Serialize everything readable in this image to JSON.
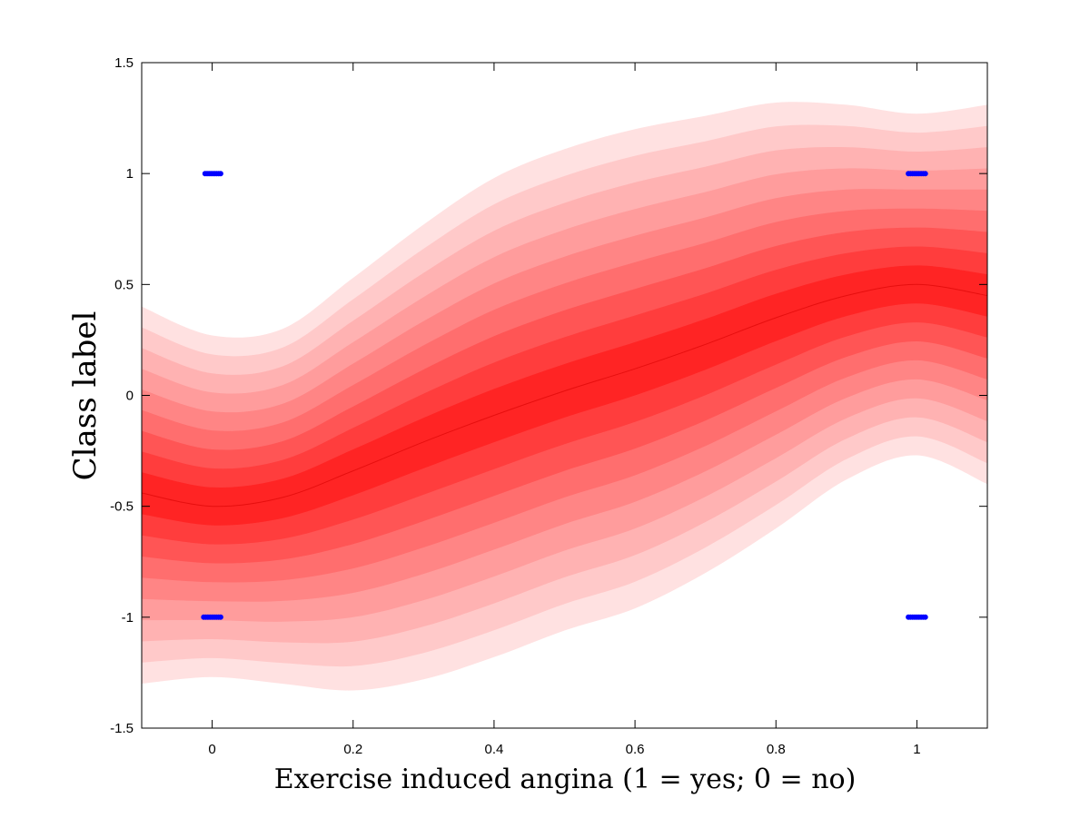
{
  "chart_data": {
    "type": "area",
    "title": "",
    "xlabel": "Exercise induced angina (1 = yes; 0 = no)",
    "ylabel": "Class label",
    "xlim": [
      -0.1,
      1.1
    ],
    "ylim": [
      -1.5,
      1.5
    ],
    "x_ticks": [
      0,
      0.2,
      0.4,
      0.6,
      0.8,
      1
    ],
    "x_tick_labels": [
      "0",
      "0.2",
      "0.4",
      "0.6",
      "0.8",
      "1"
    ],
    "y_ticks": [
      -1.5,
      -1,
      -0.5,
      0,
      0.5,
      1,
      1.5
    ],
    "y_tick_labels": [
      "-1.5",
      "-1",
      "-0.5",
      "0",
      "0.5",
      "1",
      "1.5"
    ],
    "grid": false,
    "legend": "none",
    "mean_curve": {
      "x": [
        -0.1,
        0.0,
        0.1,
        0.2,
        0.3,
        0.4,
        0.5,
        0.6,
        0.7,
        0.8,
        0.9,
        1.0,
        1.1
      ],
      "y": [
        -0.44,
        -0.5,
        -0.46,
        -0.34,
        -0.21,
        -0.09,
        0.02,
        0.12,
        0.23,
        0.35,
        0.45,
        0.5,
        0.45
      ]
    },
    "band_edges": {
      "x": [
        -0.1,
        0.0,
        0.1,
        0.2,
        0.3,
        0.4,
        0.5,
        0.6,
        0.7,
        0.8,
        0.9,
        1.0,
        1.1
      ],
      "upper": [
        0.4,
        0.27,
        0.3,
        0.53,
        0.77,
        0.98,
        1.11,
        1.2,
        1.26,
        1.32,
        1.31,
        1.27,
        1.31
      ],
      "lower": [
        -1.3,
        -1.27,
        -1.3,
        -1.33,
        -1.28,
        -1.18,
        -1.06,
        -0.96,
        -0.8,
        -0.6,
        -0.38,
        -0.27,
        -0.4
      ]
    },
    "band_colors": [
      "#ffe1e1",
      "#ffc9c9",
      "#ffb2b2",
      "#ff9c9c",
      "#ff8585",
      "#ff6e6e",
      "#ff5555",
      "#ff3d3d",
      "#ff2424"
    ],
    "points": {
      "name": "",
      "color": "#0000ff",
      "x": [
        0,
        0,
        1,
        1
      ],
      "y": [
        1,
        -1,
        1,
        -1
      ],
      "spread_x": [
        [
          -0.01,
          0.012
        ],
        [
          -0.012,
          0.012
        ],
        [
          -0.012,
          0.012
        ],
        [
          -0.012,
          0.012
        ]
      ]
    }
  }
}
